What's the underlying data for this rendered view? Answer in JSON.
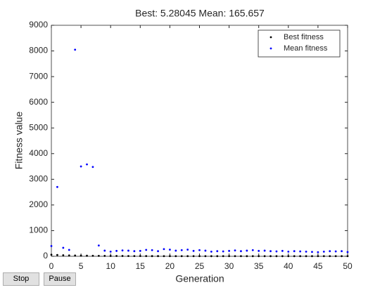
{
  "chart_data": {
    "type": "scatter",
    "title": "Best: 5.28045 Mean: 165.657",
    "xlabel": "Generation",
    "ylabel": "Fitness value",
    "x": [
      0,
      1,
      2,
      3,
      4,
      5,
      6,
      7,
      8,
      9,
      10,
      11,
      12,
      13,
      14,
      15,
      16,
      17,
      18,
      19,
      20,
      21,
      22,
      23,
      24,
      25,
      26,
      27,
      28,
      29,
      30,
      31,
      32,
      33,
      34,
      35,
      36,
      37,
      38,
      39,
      40,
      41,
      42,
      43,
      44,
      45,
      46,
      47,
      48,
      49,
      50
    ],
    "series": [
      {
        "name": "Best fitness",
        "color": "#000000",
        "values": [
          60,
          50,
          40,
          35,
          30,
          25,
          22,
          20,
          18,
          16,
          14,
          13,
          12,
          11,
          10,
          9.5,
          9,
          8.5,
          8,
          7.5,
          7,
          6.8,
          6.6,
          6.4,
          6.2,
          6,
          5.9,
          5.8,
          5.7,
          5.6,
          5.5,
          5.5,
          5.45,
          5.4,
          5.4,
          5.35,
          5.35,
          5.3,
          5.3,
          5.3,
          5.3,
          5.29,
          5.29,
          5.29,
          5.29,
          5.28,
          5.28,
          5.28,
          5.28,
          5.28,
          5.28045
        ]
      },
      {
        "name": "Mean fitness",
        "color": "#0000ff",
        "values": [
          400,
          2700,
          330,
          250,
          8050,
          3500,
          3580,
          3480,
          420,
          220,
          180,
          210,
          230,
          220,
          200,
          210,
          250,
          240,
          200,
          280,
          260,
          220,
          240,
          260,
          210,
          240,
          220,
          180,
          200,
          190,
          210,
          230,
          200,
          220,
          240,
          210,
          220,
          200,
          190,
          210,
          180,
          200,
          190,
          180,
          170,
          160,
          180,
          200,
          190,
          200,
          165.657
        ]
      }
    ],
    "xlim": [
      0,
      50
    ],
    "xticks": [
      0,
      5,
      10,
      15,
      20,
      25,
      30,
      35,
      40,
      45,
      50
    ],
    "ylim": [
      0,
      9000
    ],
    "yticks": [
      0,
      1000,
      2000,
      3000,
      4000,
      5000,
      6000,
      7000,
      8000,
      9000
    ],
    "legend": "upper right"
  },
  "controls": [
    "Stop",
    "Pause"
  ]
}
